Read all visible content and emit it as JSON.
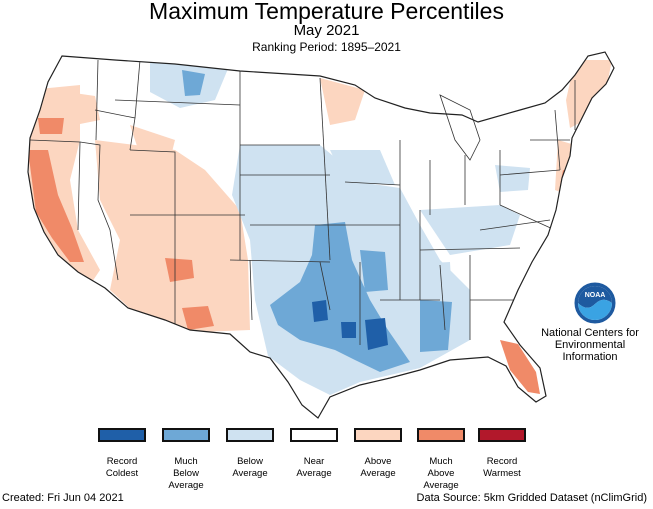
{
  "header": {
    "title": "Maximum Temperature Percentiles",
    "subtitle": "May 2021",
    "ranking_period": "Ranking Period: 1895–2021"
  },
  "legend": [
    {
      "lines": [
        "Record",
        "Coldest"
      ],
      "color": "#1f5fa8"
    },
    {
      "lines": [
        "Much",
        "Below",
        "Average"
      ],
      "color": "#6ea8d6"
    },
    {
      "lines": [
        "Below",
        "Average"
      ],
      "color": "#cfe2f1"
    },
    {
      "lines": [
        "Near",
        "Average"
      ],
      "color": "#ffffff"
    },
    {
      "lines": [
        "Above",
        "Average"
      ],
      "color": "#fcd6c0"
    },
    {
      "lines": [
        "Much",
        "Above",
        "Average"
      ],
      "color": "#f08a68"
    },
    {
      "lines": [
        "Record",
        "Warmest"
      ],
      "color": "#b2182b"
    }
  ],
  "logo": {
    "text": "NOAA",
    "agency_lines": [
      "National Centers for",
      "Environmental",
      "Information"
    ]
  },
  "footer": {
    "created": "Created: Fri Jun 04 2021",
    "source": "Data Source: 5km Gridded Dataset (nClimGrid)"
  }
}
